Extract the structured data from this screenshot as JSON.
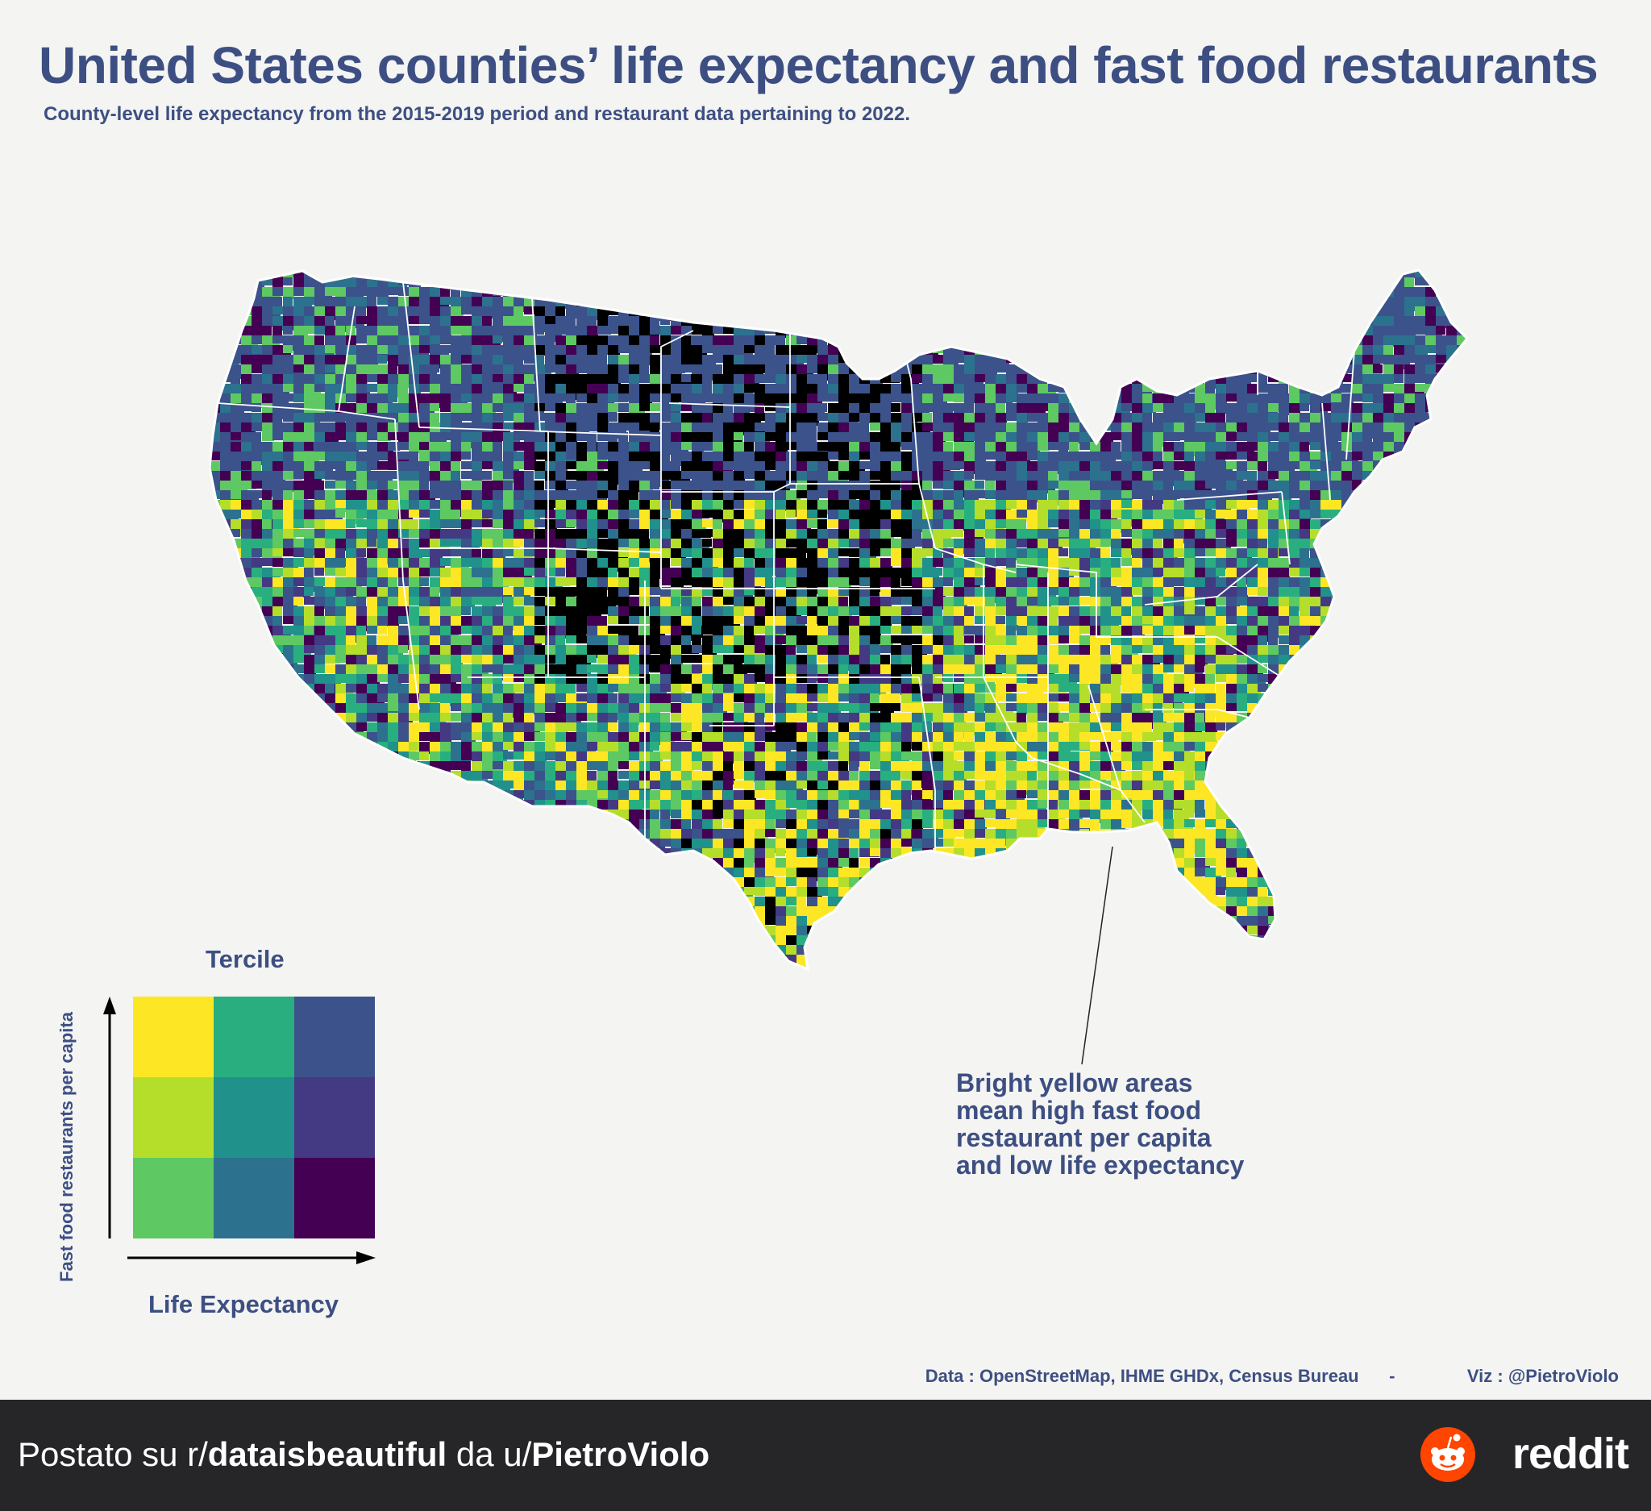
{
  "title": "United States counties’  life expectancy and fast food restaurants",
  "subtitle": "County-level life expectancy from the 2015-2019 period and restaurant data pertaining to 2022.",
  "legend": {
    "title": "Tercile",
    "y_label": "Fast food restaurants per capita",
    "x_label": "Life Expectancy",
    "colors": [
      [
        "#fde725",
        "#29af7f",
        "#3b528b"
      ],
      [
        "#b5de2b",
        "#21918c",
        "#443983"
      ],
      [
        "#5ec962",
        "#2c728e",
        "#440154"
      ]
    ]
  },
  "map": {
    "no_data_color": "#000000",
    "border_color": "#ffffff"
  },
  "annotation": "Bright yellow areas mean high fast food restaurant per capita and low life expectancy",
  "credits": {
    "data": "Data : OpenStreetMap, IHME GHDx, Census Bureau",
    "separator": "-",
    "viz": "Viz : @PietroViolo"
  },
  "footer": {
    "prefix": "Postato su r/",
    "subreddit": "dataisbeautiful",
    "middle": " da u/",
    "user": "PietroViolo",
    "brand": "reddit"
  }
}
